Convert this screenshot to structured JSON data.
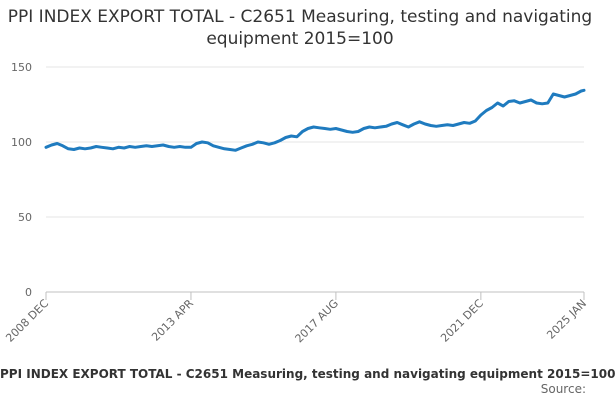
{
  "chart_data": {
    "type": "line",
    "title": "PPI INDEX EXPORT TOTAL - C2651 Measuring, testing and navigating equipment 2015=100",
    "xlabel": "",
    "ylabel": "",
    "ylim": [
      0,
      150
    ],
    "y_ticks": [
      "0",
      "50",
      "100",
      "150"
    ],
    "x_tick_labels": [
      "2008 DEC",
      "2013 APR",
      "2017 AUG",
      "2021 DEC",
      "2025 JAN"
    ],
    "grid": true,
    "legend_position": "bottom",
    "color": "#1f7bbf",
    "series": [
      {
        "name": "PPI INDEX EXPORT TOTAL - C2651 Measuring, testing and navigating equipment 2015=100",
        "x": [
          "2008-12",
          "2009-02",
          "2009-04",
          "2009-06",
          "2009-08",
          "2009-10",
          "2009-12",
          "2010-02",
          "2010-04",
          "2010-06",
          "2010-08",
          "2010-10",
          "2010-12",
          "2011-02",
          "2011-04",
          "2011-06",
          "2011-08",
          "2011-10",
          "2011-12",
          "2012-02",
          "2012-04",
          "2012-06",
          "2012-08",
          "2012-10",
          "2012-12",
          "2013-02",
          "2013-04",
          "2013-06",
          "2013-08",
          "2013-10",
          "2013-12",
          "2014-02",
          "2014-04",
          "2014-06",
          "2014-08",
          "2014-10",
          "2014-12",
          "2015-02",
          "2015-04",
          "2015-06",
          "2015-08",
          "2015-10",
          "2015-12",
          "2016-02",
          "2016-04",
          "2016-06",
          "2016-08",
          "2016-10",
          "2016-12",
          "2017-02",
          "2017-04",
          "2017-06",
          "2017-08",
          "2017-10",
          "2017-12",
          "2018-02",
          "2018-04",
          "2018-06",
          "2018-08",
          "2018-10",
          "2018-12",
          "2019-02",
          "2019-04",
          "2019-06",
          "2019-08",
          "2019-10",
          "2019-12",
          "2020-02",
          "2020-04",
          "2020-06",
          "2020-08",
          "2020-10",
          "2020-12",
          "2021-02",
          "2021-04",
          "2021-06",
          "2021-08",
          "2021-10",
          "2021-12",
          "2022-02",
          "2022-04",
          "2022-06",
          "2022-08",
          "2022-10",
          "2022-12",
          "2023-02",
          "2023-04",
          "2023-06",
          "2023-08",
          "2023-10",
          "2023-12",
          "2024-02",
          "2024-04",
          "2024-06",
          "2024-08",
          "2024-10",
          "2024-12",
          "2025-01"
        ],
        "values": [
          96.5,
          98,
          99,
          97.5,
          95.5,
          95,
          96,
          95.5,
          96,
          97,
          96.5,
          96,
          95.5,
          96.5,
          96,
          97,
          96.5,
          97,
          97.5,
          97,
          97.5,
          98,
          97,
          96.5,
          97,
          96.5,
          96.5,
          99,
          100,
          99.5,
          97.5,
          96.5,
          95.5,
          95,
          94.5,
          96,
          97.5,
          98.5,
          100,
          99.5,
          98.5,
          99.5,
          101,
          103,
          104,
          103.5,
          107,
          109,
          110,
          109.5,
          109,
          108.5,
          109,
          108,
          107,
          106.5,
          107,
          109,
          110,
          109.5,
          110,
          110.5,
          112,
          113,
          111.5,
          110,
          112,
          113.5,
          112,
          111,
          110.5,
          111,
          111.5,
          111,
          112,
          113,
          112.5,
          114,
          118,
          121,
          123,
          126,
          124,
          127,
          127.5,
          126,
          127,
          128,
          126,
          125.5,
          126,
          132,
          131,
          130,
          131,
          132,
          134,
          134.5
        ]
      }
    ]
  },
  "legend_label": "PPI INDEX EXPORT TOTAL - C2651 Measuring, testing and navigating equipment 2015=100",
  "source_label": "Source:"
}
